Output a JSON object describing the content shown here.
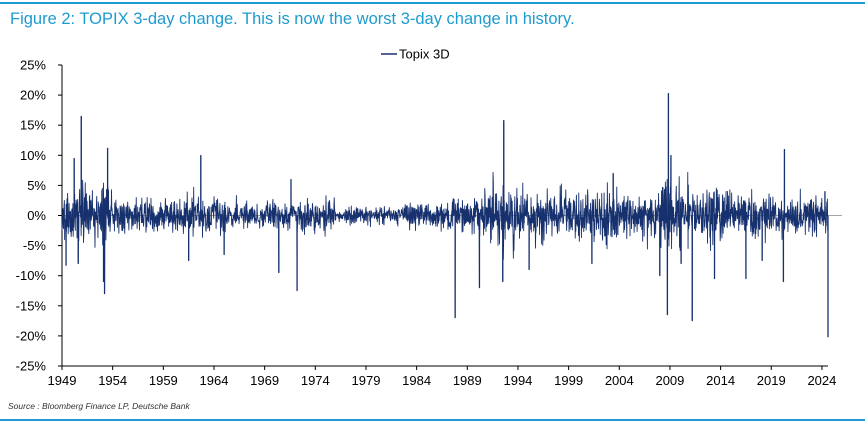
{
  "header": {
    "title": "Figure 2: TOPIX 3-day change. This is now the worst 3-day change in history."
  },
  "footer": {
    "source": "Source : Bloomberg Finance LP, Deutsche Bank"
  },
  "colors": {
    "accent": "#1d9bd0",
    "series": "#17316f",
    "zero_line": "#a6a6a6"
  },
  "chart_data": {
    "type": "line",
    "title": "",
    "xlabel": "",
    "ylabel": "",
    "legend": {
      "entries": [
        "Topix 3D"
      ],
      "placement": "top-center"
    },
    "x_range": [
      1949,
      2024.6
    ],
    "ylim": [
      -25,
      25
    ],
    "y_ticks": [
      25,
      20,
      15,
      10,
      5,
      0,
      -5,
      -10,
      -15,
      -20,
      -25
    ],
    "y_tick_labels": [
      "25%",
      "20%",
      "15%",
      "10%",
      "5%",
      "0%",
      "-5%",
      "-10%",
      "-15%",
      "-20%",
      "-25%"
    ],
    "x_ticks": [
      1949,
      1954,
      1959,
      1964,
      1969,
      1974,
      1979,
      1984,
      1989,
      1994,
      1999,
      2004,
      2009,
      2014,
      2019,
      2024
    ],
    "grid": false,
    "series": [
      {
        "name": "Topix 3D",
        "unit": "%",
        "volatility_regimes": [
          {
            "from": 1949,
            "to": 1952,
            "typical_pct": 4.0
          },
          {
            "from": 1952,
            "to": 1954,
            "typical_pct": 3.5
          },
          {
            "from": 1954,
            "to": 1960,
            "typical_pct": 2.2
          },
          {
            "from": 1960,
            "to": 1965,
            "typical_pct": 2.3
          },
          {
            "from": 1965,
            "to": 1972,
            "typical_pct": 1.7
          },
          {
            "from": 1972,
            "to": 1976,
            "typical_pct": 2.2
          },
          {
            "from": 1976,
            "to": 1983,
            "typical_pct": 1.1
          },
          {
            "from": 1983,
            "to": 1987,
            "typical_pct": 1.7
          },
          {
            "from": 1987,
            "to": 1990,
            "typical_pct": 2.5
          },
          {
            "from": 1990,
            "to": 1994,
            "typical_pct": 3.6
          },
          {
            "from": 1994,
            "to": 2001,
            "typical_pct": 3.0
          },
          {
            "from": 2001,
            "to": 2004,
            "typical_pct": 3.3
          },
          {
            "from": 2004,
            "to": 2008,
            "typical_pct": 2.6
          },
          {
            "from": 2008,
            "to": 2010,
            "typical_pct": 5.0
          },
          {
            "from": 2010,
            "to": 2014,
            "typical_pct": 3.4
          },
          {
            "from": 2014,
            "to": 2020,
            "typical_pct": 2.9
          },
          {
            "from": 2020,
            "to": 2024.6,
            "typical_pct": 2.3
          }
        ],
        "notable_points": [
          {
            "x": 1949.4,
            "y": -8.3
          },
          {
            "x": 1950.2,
            "y": 9.5
          },
          {
            "x": 1950.6,
            "y": -8.0
          },
          {
            "x": 1950.9,
            "y": 16.5
          },
          {
            "x": 1953.1,
            "y": -11.0
          },
          {
            "x": 1953.2,
            "y": -13.0
          },
          {
            "x": 1953.5,
            "y": 11.2
          },
          {
            "x": 1961.5,
            "y": -7.5
          },
          {
            "x": 1962.7,
            "y": 10.0
          },
          {
            "x": 1965.0,
            "y": -6.5
          },
          {
            "x": 1970.4,
            "y": -9.5
          },
          {
            "x": 1971.6,
            "y": 6.0
          },
          {
            "x": 1972.2,
            "y": -12.5
          },
          {
            "x": 1987.8,
            "y": -17.0
          },
          {
            "x": 1990.2,
            "y": -12.0
          },
          {
            "x": 1992.5,
            "y": -11.0
          },
          {
            "x": 1992.6,
            "y": 15.8
          },
          {
            "x": 1995.1,
            "y": -9.0
          },
          {
            "x": 2001.3,
            "y": -8.0
          },
          {
            "x": 2003.4,
            "y": 7.0
          },
          {
            "x": 2008.0,
            "y": -10.0
          },
          {
            "x": 2008.75,
            "y": -16.5
          },
          {
            "x": 2008.85,
            "y": 20.3
          },
          {
            "x": 2009.1,
            "y": 10.0
          },
          {
            "x": 2010.1,
            "y": -8.0
          },
          {
            "x": 2011.2,
            "y": -17.5
          },
          {
            "x": 2013.4,
            "y": -10.5
          },
          {
            "x": 2016.5,
            "y": -10.5
          },
          {
            "x": 2018.1,
            "y": -7.5
          },
          {
            "x": 2020.2,
            "y": -11.0
          },
          {
            "x": 2020.3,
            "y": 11.0
          },
          {
            "x": 2024.3,
            "y": 4.0
          },
          {
            "x": 2024.6,
            "y": -20.2
          }
        ]
      }
    ],
    "annotations": [
      "This is now the worst 3-day change in history."
    ]
  }
}
